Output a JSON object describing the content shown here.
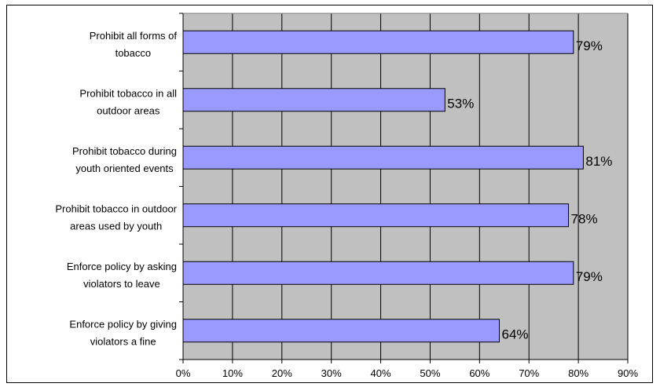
{
  "chart_data": {
    "type": "bar",
    "orientation": "horizontal",
    "categories": [
      "Prohibit all forms of tobacco",
      "Prohibit tobacco in all outdoor areas",
      "Prohibit tobacco during youth oriented events",
      "Prohibit tobacco in outdoor areas used by youth",
      "Enforce policy by asking violators to leave",
      "Enforce policy by giving violators a fine"
    ],
    "category_lines": [
      [
        "Prohibit all forms of",
        "tobacco"
      ],
      [
        "Prohibit tobacco in all",
        "outdoor areas"
      ],
      [
        "Prohibit tobacco during",
        "youth oriented events"
      ],
      [
        "Prohibit tobacco in outdoor",
        "areas used by youth"
      ],
      [
        "Enforce policy by asking",
        "violators to leave"
      ],
      [
        "Enforce policy by giving",
        "violators a fine"
      ]
    ],
    "values": [
      79,
      53,
      81,
      78,
      79,
      64
    ],
    "data_labels": [
      "79%",
      "53%",
      "81%",
      "78%",
      "79%",
      "64%"
    ],
    "xlim": [
      0,
      90
    ],
    "xticks": [
      0,
      10,
      20,
      30,
      40,
      50,
      60,
      70,
      80,
      90
    ],
    "xtick_labels": [
      "0%",
      "10%",
      "20%",
      "30%",
      "40%",
      "50%",
      "60%",
      "70%",
      "80%",
      "90%"
    ],
    "grid": true,
    "colors": {
      "bar_fill": "#9999ff",
      "bar_stroke": "#000000",
      "plot_background": "#c0c0c0",
      "grid": "#000000"
    }
  }
}
